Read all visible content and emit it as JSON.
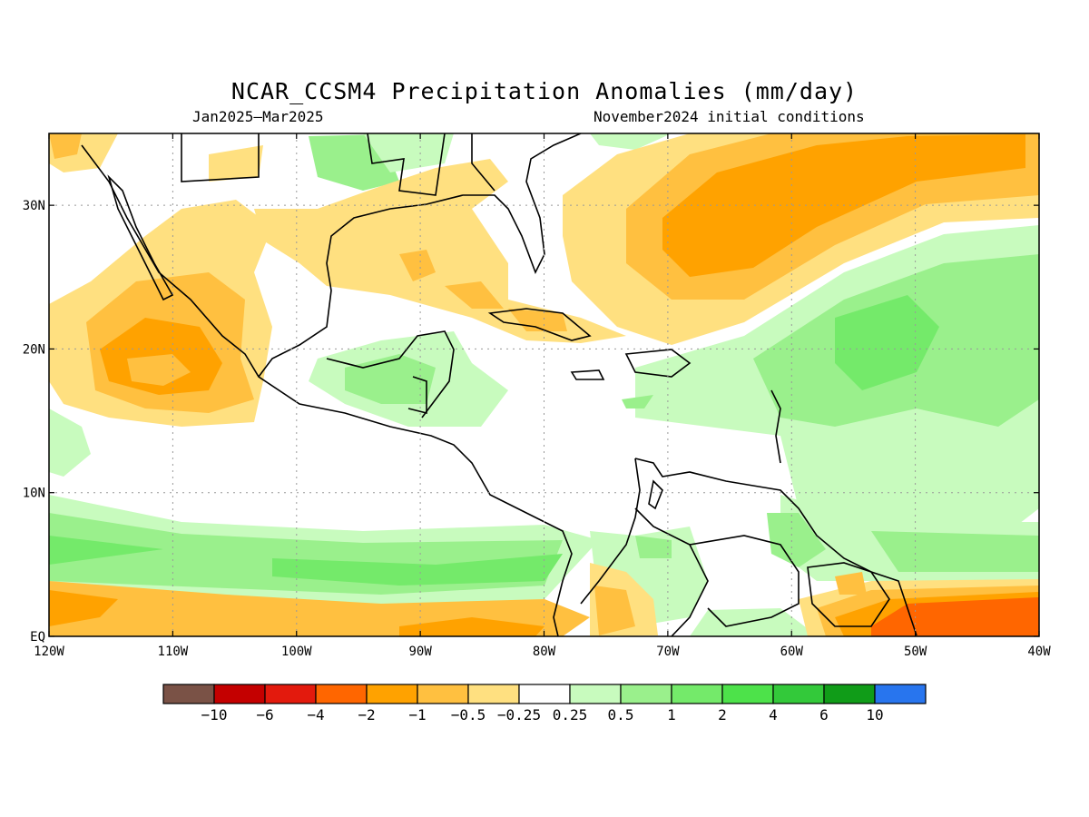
{
  "header": {
    "title": "NCAR_CCSM4 Precipitation Anomalies (mm/day)",
    "period": "Jan2025–Mar2025",
    "init": "November2024 initial conditions"
  },
  "map": {
    "lon_range": [
      -120,
      -40
    ],
    "lat_range": [
      0,
      35
    ],
    "x_ticks": [
      {
        "lon": -120,
        "label": "120W"
      },
      {
        "lon": -110,
        "label": "110W"
      },
      {
        "lon": -100,
        "label": "100W"
      },
      {
        "lon": -90,
        "label": "90W"
      },
      {
        "lon": -80,
        "label": "80W"
      },
      {
        "lon": -70,
        "label": "70W"
      },
      {
        "lon": -60,
        "label": "60W"
      },
      {
        "lon": -50,
        "label": "50W"
      },
      {
        "lon": -40,
        "label": "40W"
      }
    ],
    "y_ticks": [
      {
        "lat": 0,
        "label": "EQ"
      },
      {
        "lat": 10,
        "label": "10N"
      },
      {
        "lat": 20,
        "label": "20N"
      },
      {
        "lat": 30,
        "label": "30N"
      }
    ],
    "grid": "dotted"
  },
  "legend": {
    "colors": [
      "#7a5246",
      "#c40000",
      "#e31a0d",
      "#ff6600",
      "#ffa200",
      "#ffc040",
      "#ffe080",
      "#ffffff",
      "#c8fbbe",
      "#9af08c",
      "#74ea6a",
      "#4de24a",
      "#33c93a",
      "#109c18",
      "#2875ee"
    ],
    "labels": [
      "−10",
      "−6",
      "−4",
      "−2",
      "−1",
      "−0.5",
      "−0.25",
      "0.25",
      "0.5",
      "1",
      "2",
      "4",
      "6",
      "10"
    ]
  },
  "palette": {
    "dry1": "#ffe080",
    "dry2": "#ffc040",
    "dry3": "#ffa200",
    "dry4": "#ff6600",
    "wet1": "#c8fbbe",
    "wet2": "#9af08c",
    "wet3": "#74ea6a"
  }
}
